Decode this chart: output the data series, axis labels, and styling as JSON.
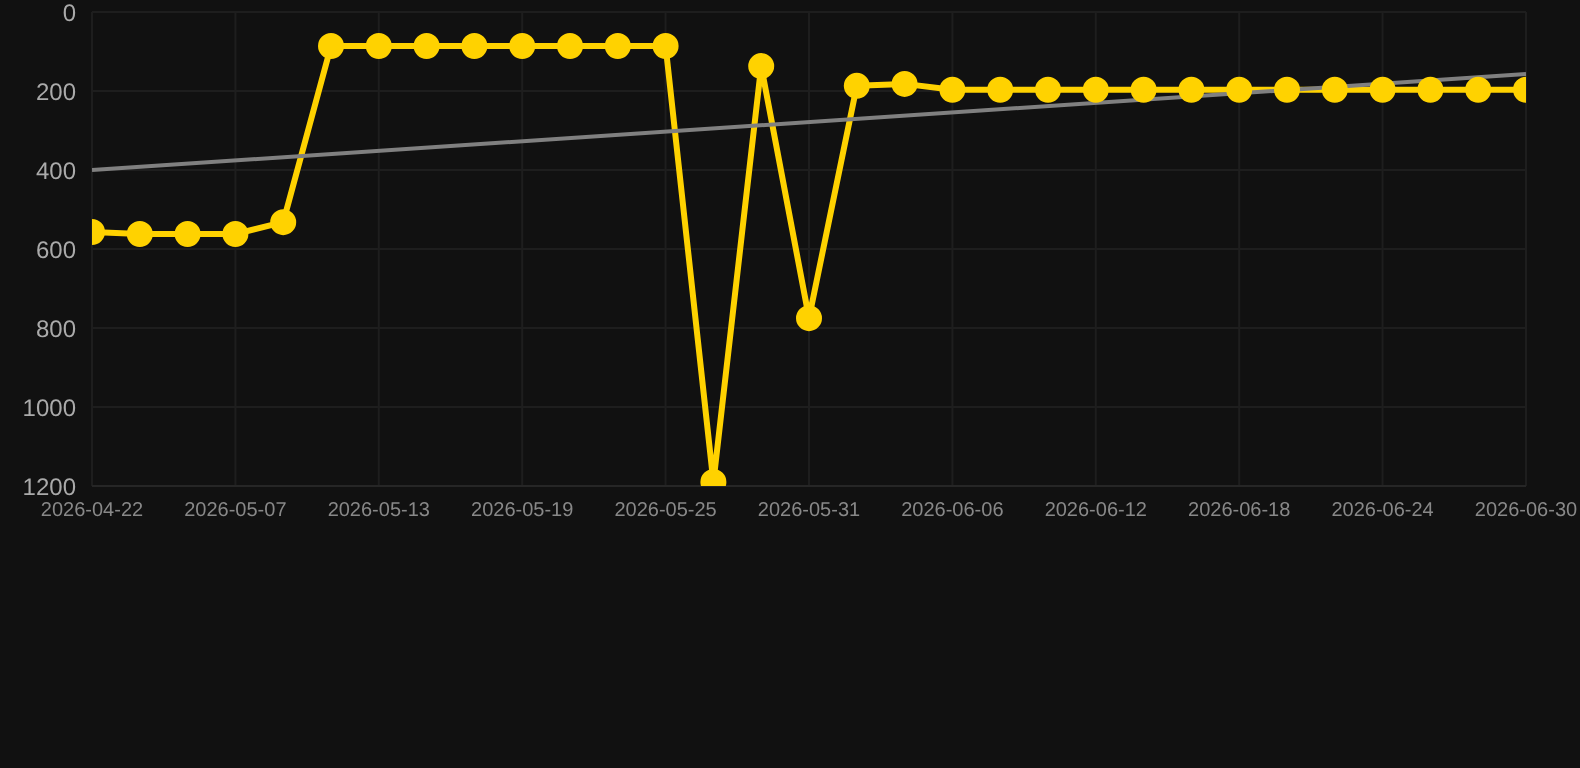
{
  "chart_data": {
    "type": "line",
    "categories": [
      "2026-04-22",
      null,
      null,
      "2026-05-07",
      null,
      null,
      "2026-05-13",
      null,
      null,
      "2026-05-19",
      null,
      null,
      "2026-05-25",
      null,
      null,
      "2026-05-31",
      null,
      null,
      "2026-06-06",
      null,
      null,
      "2026-06-12",
      null,
      null,
      "2026-06-18",
      null,
      null,
      "2026-06-24",
      null,
      null,
      "2026-06-30"
    ],
    "series": [
      {
        "color": "#ffd200",
        "marker": "circle",
        "values": [
          557,
          562,
          562,
          562,
          532,
          86,
          86,
          86,
          86,
          86,
          86,
          86,
          86,
          1190,
          137,
          775,
          187,
          182,
          197,
          197,
          197,
          197,
          197,
          197,
          197,
          197,
          197,
          197,
          197,
          197,
          197
        ]
      },
      {
        "type": "line",
        "color": "#808080",
        "marker": "none",
        "values": [
          400,
          null,
          null,
          null,
          null,
          null,
          null,
          null,
          null,
          null,
          null,
          null,
          null,
          null,
          null,
          null,
          null,
          null,
          null,
          null,
          null,
          null,
          null,
          null,
          null,
          null,
          null,
          null,
          null,
          null,
          157
        ]
      }
    ],
    "ylim": [
      1200,
      0
    ],
    "yticks": [
      0,
      200,
      400,
      600,
      800,
      1000,
      1200
    ],
    "grid": true
  }
}
